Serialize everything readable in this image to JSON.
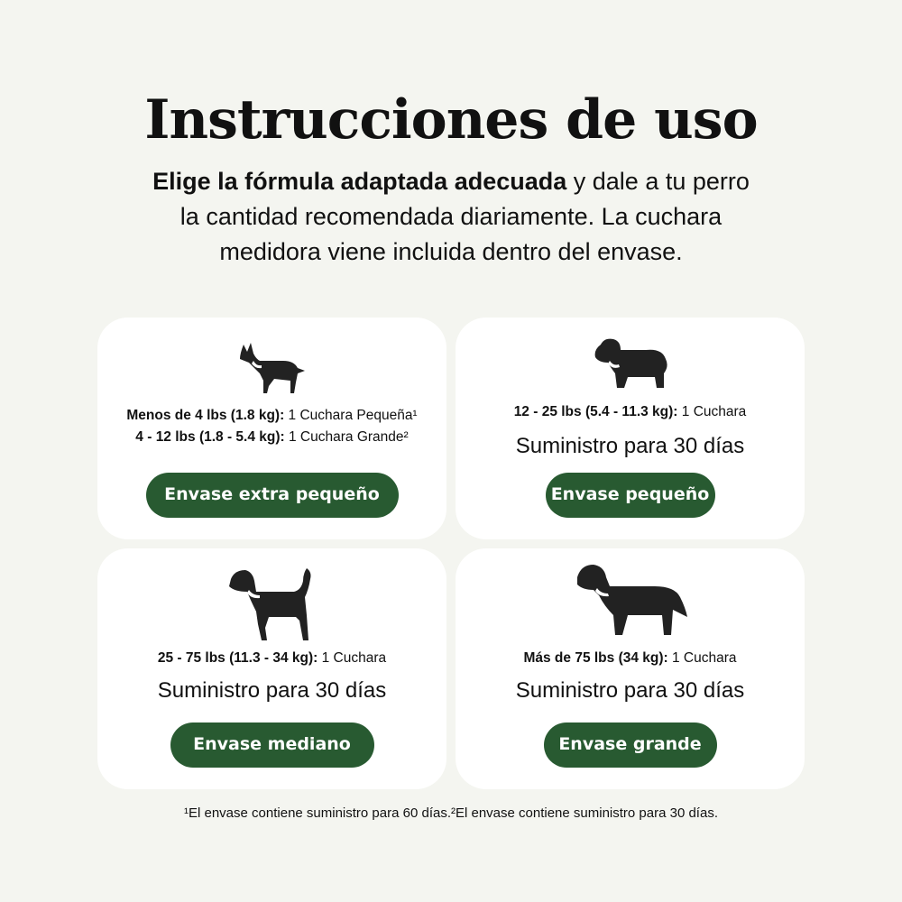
{
  "title": "Instrucciones de uso",
  "intro": {
    "bold": "Elige la fórmula adaptada adecuada",
    "rest": " y dale a tu perro la cantidad recomendada diariamente. La cuchara medidora viene incluida dentro del envase."
  },
  "colors": {
    "background": "#f4f5f0",
    "button": "#285a31",
    "card": "#ffffff"
  },
  "cards": [
    {
      "icon": "small-dog-icon",
      "lines": [
        {
          "bold": "Menos de 4 lbs (1.8 kg):",
          "text": " 1 Cuchara Pequeña¹"
        },
        {
          "bold": "4 - 12 lbs (1.8 - 5.4 kg):",
          "text": " 1 Cuchara Grande²"
        }
      ],
      "button": "Envase extra pequeño"
    },
    {
      "icon": "curly-dog-icon",
      "lines": [
        {
          "bold": "12 - 25 lbs (5.4 - 11.3 kg):",
          "text": " 1 Cuchara"
        }
      ],
      "supply": "Suministro para 30 días",
      "button": "Envase pequeño"
    },
    {
      "icon": "medium-dog-icon",
      "lines": [
        {
          "bold": "25 - 75 lbs (11.3 - 34 kg):",
          "text": " 1 Cuchara"
        }
      ],
      "supply": "Suministro para 30 días",
      "button": "Envase mediano"
    },
    {
      "icon": "large-dog-icon",
      "lines": [
        {
          "bold": "Más de 75 lbs (34 kg):",
          "text": " 1 Cuchara"
        }
      ],
      "supply": "Suministro para 30 días",
      "button": "Envase grande"
    }
  ],
  "footnote": "¹El envase contiene suministro para 60 días.²El envase contiene suministro para 30 días."
}
